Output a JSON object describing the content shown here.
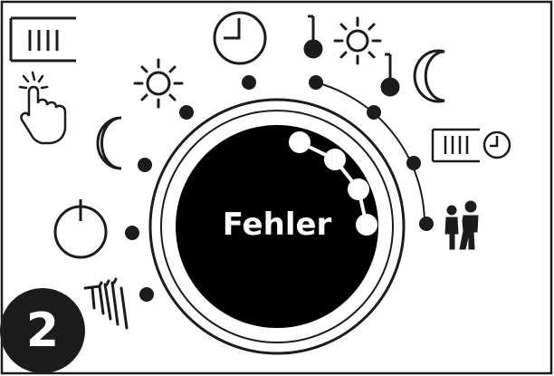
{
  "display": {
    "status_text": "Fehler"
  },
  "step_badge": {
    "number": "2"
  },
  "dial": {
    "positions": [
      "manual-hand",
      "standby-power",
      "night-moon",
      "day-sun",
      "clock-auto",
      "temp-day-sun",
      "temp-night-moon",
      "radiator-timer",
      "party-people"
    ],
    "lit_segments": 4
  },
  "colors": {
    "ink": "#1c1c1c",
    "display_bg": "#000000",
    "display_text": "#ffffff",
    "background": "#ffffff"
  }
}
